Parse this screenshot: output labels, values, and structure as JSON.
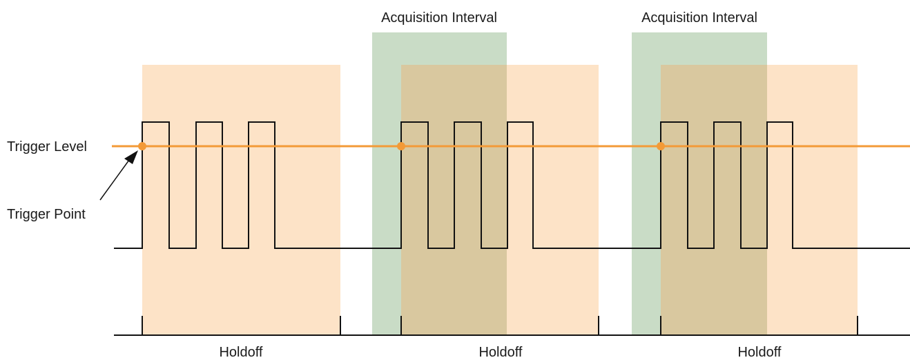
{
  "labels": {
    "trigger_level": "Trigger Level",
    "trigger_point": "Trigger Point",
    "acquisition_interval": "Acquisition Interval",
    "holdoff": "Holdoff"
  },
  "colors": {
    "holdoff_fill": "#fde3c7",
    "acquisition_fill": "#c9dcc6",
    "overlap_fill": "#d9c89f",
    "trigger_line": "#f39a37",
    "trigger_point": "#f39a37",
    "signal": "#111111"
  }
}
